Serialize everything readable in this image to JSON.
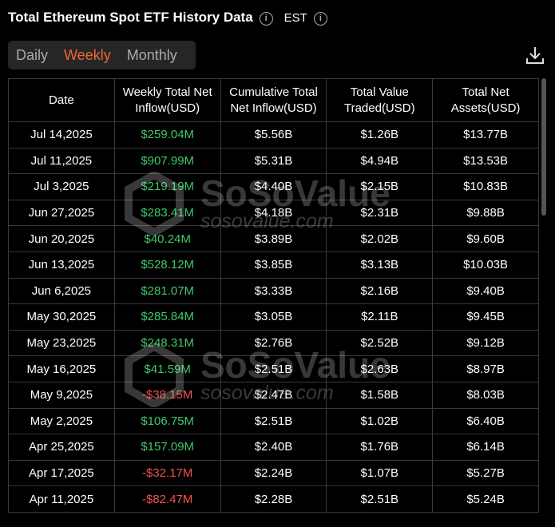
{
  "header": {
    "title": "Total Ethereum Spot ETF History Data",
    "timezone": "EST"
  },
  "tabs": [
    "Daily",
    "Weekly",
    "Monthly"
  ],
  "active_tab": 1,
  "watermark": {
    "brand": "SoSoValue",
    "site": "sosovalue.com"
  },
  "table": {
    "columns": [
      "Date",
      "Weekly Total Net Inflow(USD)",
      "Cumulative Total Net Inflow(USD)",
      "Total Value Traded(USD)",
      "Total Net Assets(USD)"
    ],
    "rows": [
      [
        "Jul 14,2025",
        "$259.04M",
        "$5.56B",
        "$1.26B",
        "$13.77B"
      ],
      [
        "Jul 11,2025",
        "$907.99M",
        "$5.31B",
        "$4.94B",
        "$13.53B"
      ],
      [
        "Jul 3,2025",
        "$219.19M",
        "$4.40B",
        "$2.15B",
        "$10.83B"
      ],
      [
        "Jun 27,2025",
        "$283.41M",
        "$4.18B",
        "$2.31B",
        "$9.88B"
      ],
      [
        "Jun 20,2025",
        "$40.24M",
        "$3.89B",
        "$2.02B",
        "$9.60B"
      ],
      [
        "Jun 13,2025",
        "$528.12M",
        "$3.85B",
        "$3.13B",
        "$10.03B"
      ],
      [
        "Jun 6,2025",
        "$281.07M",
        "$3.33B",
        "$2.16B",
        "$9.40B"
      ],
      [
        "May 30,2025",
        "$285.84M",
        "$3.05B",
        "$2.11B",
        "$9.45B"
      ],
      [
        "May 23,2025",
        "$248.31M",
        "$2.76B",
        "$2.52B",
        "$9.12B"
      ],
      [
        "May 16,2025",
        "$41.59M",
        "$2.51B",
        "$2.63B",
        "$8.97B"
      ],
      [
        "May 9,2025",
        "-$38.15M",
        "$2.47B",
        "$1.58B",
        "$8.03B"
      ],
      [
        "May 2,2025",
        "$106.75M",
        "$2.51B",
        "$1.02B",
        "$6.40B"
      ],
      [
        "Apr 25,2025",
        "$157.09M",
        "$2.40B",
        "$1.76B",
        "$6.14B"
      ],
      [
        "Apr 17,2025",
        "-$32.17M",
        "$2.24B",
        "$1.07B",
        "$5.27B"
      ],
      [
        "Apr 11,2025",
        "-$82.47M",
        "$2.28B",
        "$2.51B",
        "$5.24B"
      ]
    ]
  }
}
